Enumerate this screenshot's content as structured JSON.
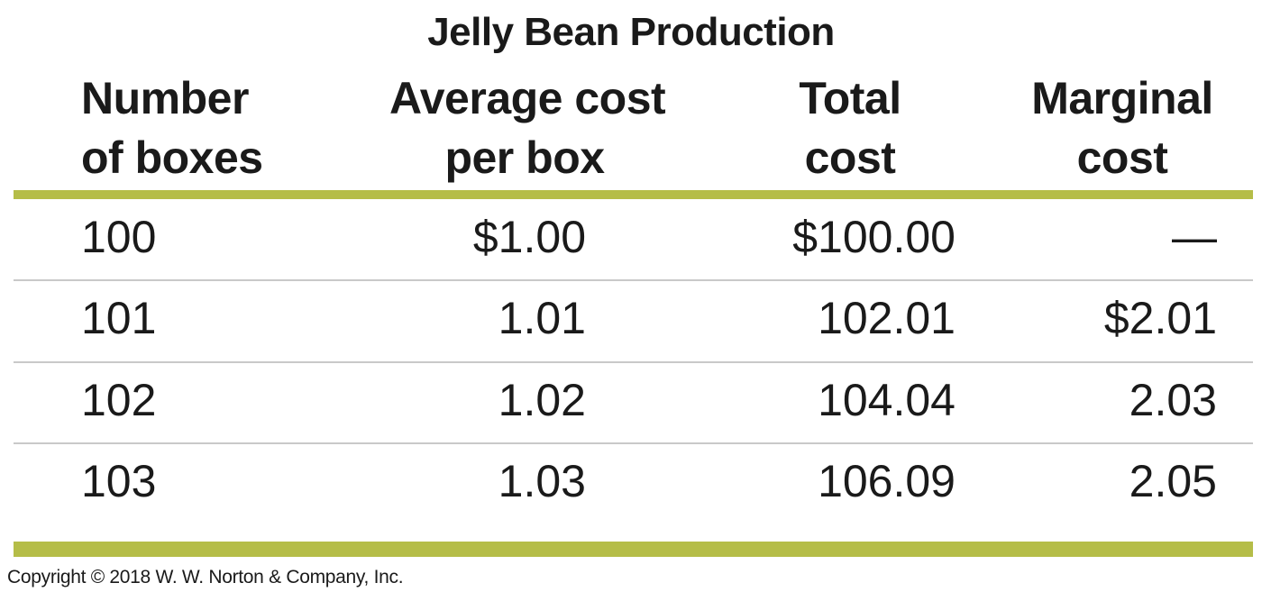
{
  "chart_data": {
    "type": "table",
    "title": "Jelly Bean Production",
    "columns": [
      [
        "Number",
        "of boxes"
      ],
      [
        "Average cost",
        "per box"
      ],
      [
        "Total",
        "cost"
      ],
      [
        "Marginal",
        "cost"
      ]
    ],
    "rows": [
      [
        "100",
        "$1.00",
        "$100.00",
        "—"
      ],
      [
        "101",
        "1.01",
        "102.01",
        "$2.01"
      ],
      [
        "102",
        "1.02",
        "104.04",
        "2.03"
      ],
      [
        "103",
        "1.03",
        "106.09",
        "2.05"
      ]
    ]
  },
  "footer": {
    "copyright": "Copyright © 2018 W. W. Norton & Company, Inc."
  },
  "colors": {
    "accent_rule": "#b5bd48",
    "row_rule": "#c9c9c9",
    "text": "#1a1a1a"
  }
}
